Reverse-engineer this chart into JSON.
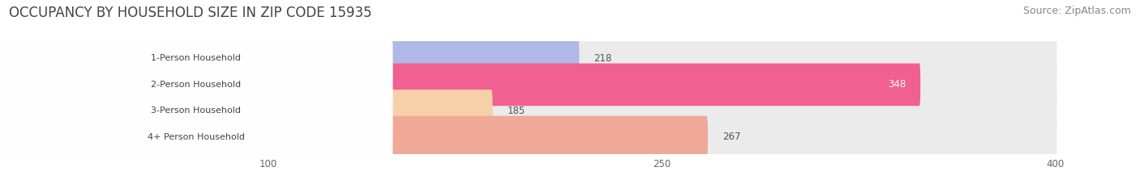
{
  "title": "OCCUPANCY BY HOUSEHOLD SIZE IN ZIP CODE 15935",
  "source": "Source: ZipAtlas.com",
  "categories": [
    "1-Person Household",
    "2-Person Household",
    "3-Person Household",
    "4+ Person Household"
  ],
  "values": [
    218,
    348,
    185,
    267
  ],
  "bar_colors": [
    "#b0b8e8",
    "#f06090",
    "#f7cfa8",
    "#f0a898"
  ],
  "background_color": "#ffffff",
  "bar_bg_color": "#ebebeb",
  "xlim": [
    0,
    430
  ],
  "xlim_display": 400,
  "xticks": [
    100,
    250,
    400
  ],
  "value_label_colors": [
    "#555555",
    "#ffffff",
    "#555555",
    "#555555"
  ],
  "title_fontsize": 12,
  "source_fontsize": 9,
  "bar_height": 0.62,
  "figsize": [
    14.06,
    2.33
  ],
  "dpi": 100
}
